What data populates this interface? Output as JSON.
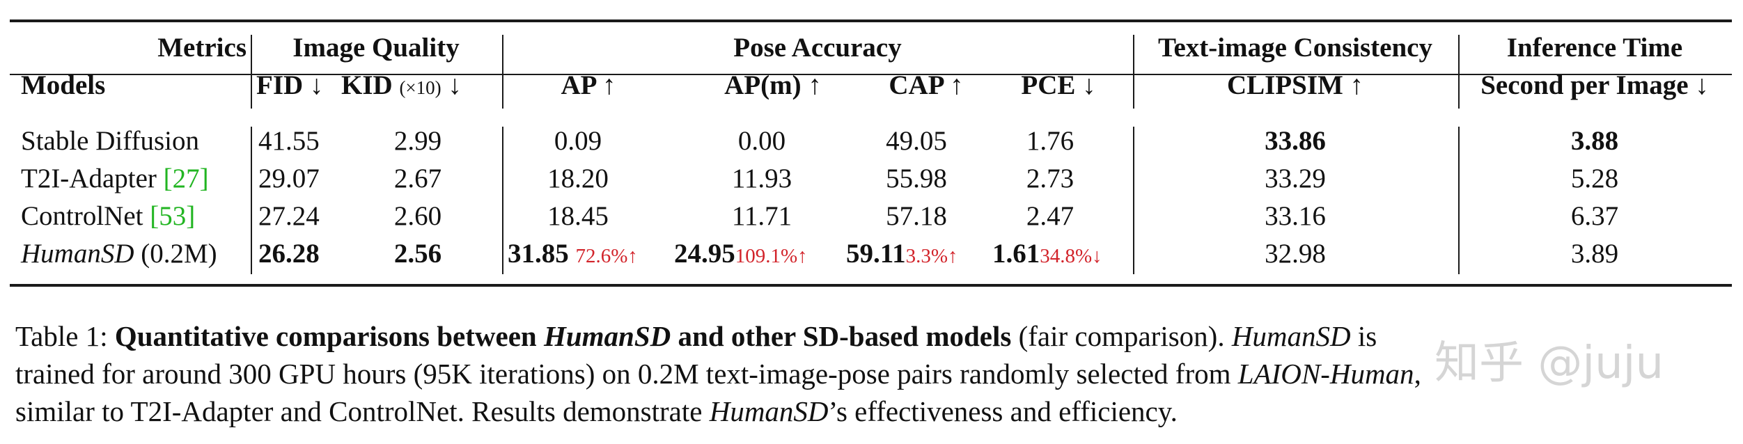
{
  "table": {
    "header": {
      "metrics_label": "Metrics",
      "models_label": "Models",
      "groups": {
        "image_quality": "Image Quality",
        "pose_accuracy": "Pose Accuracy",
        "text_image": "Text-image Consistency",
        "inference": "Inference Time"
      },
      "cols": {
        "fid": "FID ↓",
        "kid": "KID",
        "kid_scale": "(×10)",
        "kid_arrow": "↓",
        "ap": "AP ↑",
        "apm": "AP(m) ↑",
        "cap": "CAP ↑",
        "pce": "PCE ↓",
        "clipsim": "CLIPSIM ↑",
        "second": "Second per Image ↓"
      }
    },
    "rows": [
      {
        "model": "Stable Diffusion",
        "fid": "41.55",
        "kid": "2.99",
        "ap": "0.09",
        "apm": "0.00",
        "cap": "49.05",
        "pce": "1.76",
        "clipsim": "33.86",
        "time": "3.88"
      },
      {
        "model": "T2I-Adapter ",
        "ref": "[27]",
        "fid": "29.07",
        "kid": "2.67",
        "ap": "18.20",
        "apm": "11.93",
        "cap": "55.98",
        "pce": "2.73",
        "clipsim": "33.29",
        "time": "5.28"
      },
      {
        "model": "ControlNet ",
        "ref": "[53]",
        "fid": "27.24",
        "kid": "2.60",
        "ap": "18.45",
        "apm": "11.71",
        "cap": "57.18",
        "pce": "2.47",
        "clipsim": "33.16",
        "time": "6.37"
      },
      {
        "model_italic": "HumanSD",
        "model_suffix": " (0.2M)",
        "fid": "26.28",
        "kid": "2.56",
        "ap": "31.85",
        "ap_delta": "72.6%↑",
        "apm": "24.95",
        "apm_delta": "109.1%↑",
        "cap": "59.11",
        "cap_delta": "3.3%↑",
        "pce": "1.61",
        "pce_delta": "34.8%↓",
        "clipsim": "32.98",
        "time": "3.89"
      }
    ]
  },
  "caption": {
    "label": "Table 1: ",
    "bold_a": "Quantitative comparisons between ",
    "bold_it": "HumanSD",
    "bold_b": " and other SD-based models",
    "t1": " (fair comparison). ",
    "it1": "HumanSD",
    "t2": " is",
    "line2_a": "trained for around 300 GPU hours (95K iterations) on 0.2M text-image-pose pairs randomly selected from ",
    "line2_it": "LAION-Human",
    "line2_b": ",",
    "line3_a": "similar to T2I-Adapter and ControlNet. Results demonstrate ",
    "line3_it": "HumanSD",
    "line3_b": "’s effectiveness and efficiency."
  },
  "watermark": "知乎 @juju"
}
